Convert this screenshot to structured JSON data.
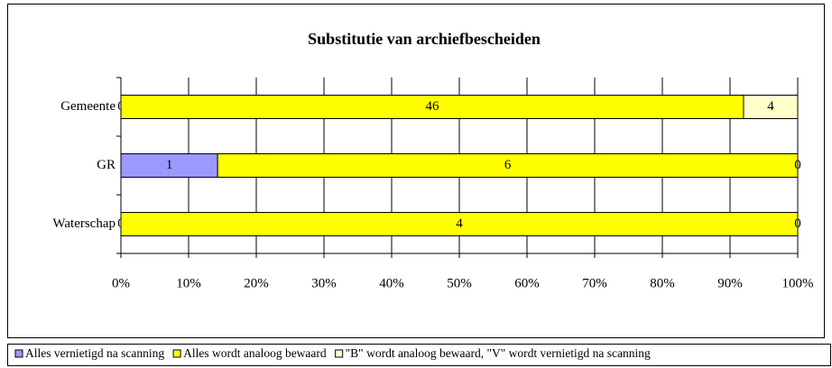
{
  "chart_data": {
    "type": "bar",
    "orientation": "horizontal",
    "stacking": "percent",
    "title": "Substitutie van archiefbescheiden",
    "categories": [
      "Gemeente",
      "GR",
      "Waterschap"
    ],
    "series": [
      {
        "name": "Alles vernietigd na scanning",
        "color": "#9999ff",
        "values": [
          0,
          1,
          0
        ]
      },
      {
        "name": "Alles wordt analoog bewaard",
        "color": "#ffff00",
        "values": [
          46,
          6,
          4
        ]
      },
      {
        "name": "\"B\" wordt analoog bewaard, \"V\" wordt vernietigd na scanning",
        "color": "#ffffcc",
        "values": [
          4,
          0,
          0
        ]
      }
    ],
    "xlim": [
      0,
      100
    ],
    "xticks": [
      {
        "value": 0,
        "label": "0%"
      },
      {
        "value": 10,
        "label": "10%"
      },
      {
        "value": 20,
        "label": "20%"
      },
      {
        "value": 30,
        "label": "30%"
      },
      {
        "value": 40,
        "label": "40%"
      },
      {
        "value": 50,
        "label": "50%"
      },
      {
        "value": 60,
        "label": "60%"
      },
      {
        "value": 70,
        "label": "70%"
      },
      {
        "value": 80,
        "label": "80%"
      },
      {
        "value": 90,
        "label": "90%"
      },
      {
        "value": 100,
        "label": "100%"
      }
    ],
    "grid": true,
    "legend": "bottom"
  }
}
